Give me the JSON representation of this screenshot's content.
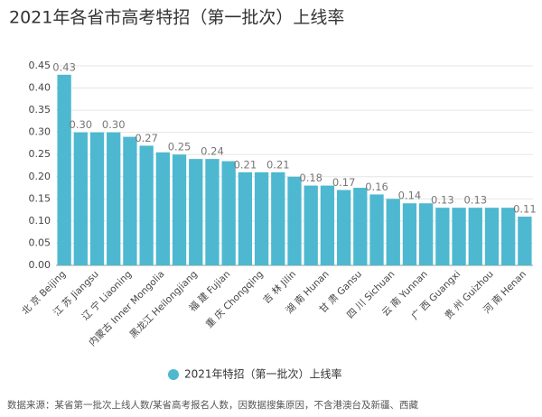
{
  "chart_data": {
    "type": "bar",
    "title": "2021年各省市高考特招（第一批次）上线率",
    "categories": [
      "北 京 Beijing",
      null,
      "江 苏 Jiangsu",
      null,
      "辽 宁 Liaoning",
      null,
      "内蒙古 Inner Mongolia",
      null,
      "黑龙江 Heilongjiang",
      null,
      "福 建 Fujian",
      null,
      "重 庆 Chongqing",
      null,
      "吉 林 Jilin",
      null,
      "湖 南 Hunan",
      null,
      "甘 肃 Gansu",
      null,
      "四 川 Sichuan",
      null,
      "云 南 Yunnan",
      null,
      "广 西 Guangxi",
      null,
      "贵 州 Guizhou",
      null,
      "河 南 Henan"
    ],
    "series": [
      {
        "name": "2021年特招（第一批次）上线率",
        "color": "#4db8d0",
        "values": [
          0.43,
          0.3,
          0.3,
          0.3,
          0.29,
          0.27,
          0.255,
          0.25,
          0.24,
          0.24,
          0.235,
          0.21,
          0.21,
          0.21,
          0.2,
          0.18,
          0.18,
          0.17,
          0.175,
          0.16,
          0.15,
          0.14,
          0.14,
          0.13,
          0.13,
          0.13,
          0.13,
          0.13,
          0.11
        ],
        "value_labels": [
          "0.43",
          "0.30",
          null,
          "0.30",
          null,
          "0.27",
          null,
          "0.25",
          null,
          "0.24",
          null,
          "0.21",
          null,
          "0.21",
          null,
          "0.18",
          null,
          "0.17",
          null,
          "0.16",
          null,
          "0.14",
          null,
          "0.13",
          null,
          "0.13",
          null,
          null,
          "0.11"
        ]
      }
    ],
    "ylim": [
      0,
      0.45
    ],
    "yticks": [
      {
        "value": 0,
        "label": "0.00"
      },
      {
        "value": 0.05,
        "label": "0.05"
      },
      {
        "value": 0.1,
        "label": "0.10"
      },
      {
        "value": 0.15,
        "label": "0.15"
      },
      {
        "value": 0.2,
        "label": "0.20"
      },
      {
        "value": 0.25,
        "label": "0.25"
      },
      {
        "value": 0.3,
        "label": "0.30"
      },
      {
        "value": 0.35,
        "label": "0.35"
      },
      {
        "value": 0.4,
        "label": "0.40"
      },
      {
        "value": 0.45,
        "label": "0.45"
      }
    ],
    "grid": true,
    "legend": "bottom",
    "source": "数据来源：某省第一批次上线人数/某省高考报名人数，因数据搜集原因，不含港澳台及新疆、西藏"
  }
}
